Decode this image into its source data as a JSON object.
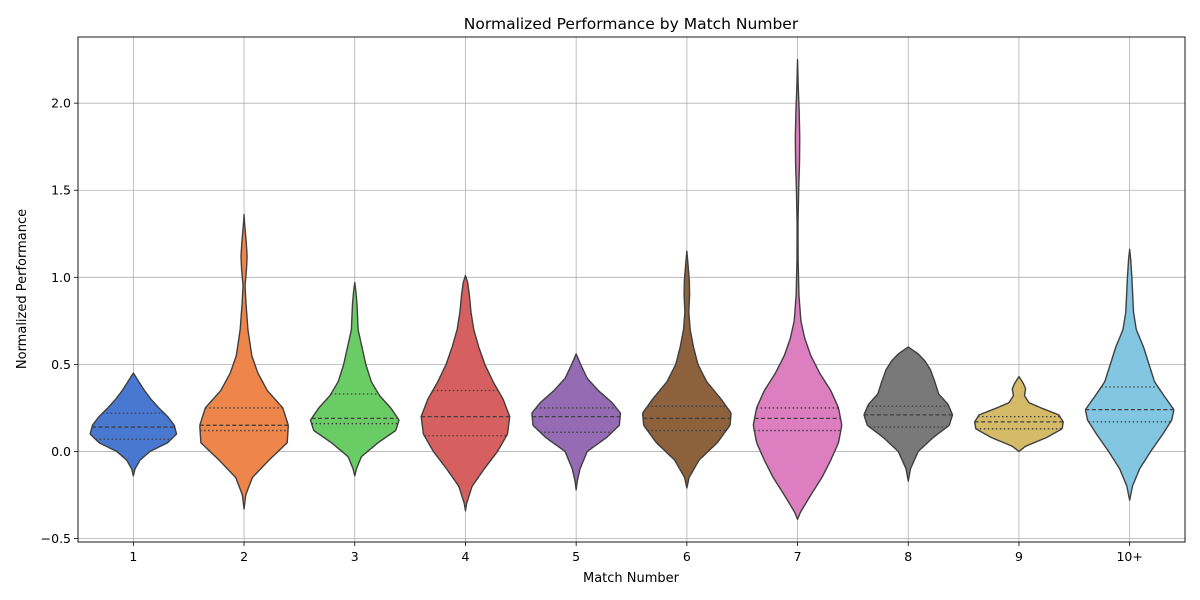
{
  "chart_data": {
    "type": "violin",
    "title": "Normalized Performance by Match Number",
    "xlabel": "Match Number",
    "ylabel": "Normalized Performance",
    "ylim": [
      -0.52,
      2.38
    ],
    "yticks": [
      -0.5,
      0.0,
      0.5,
      1.0,
      1.5,
      2.0
    ],
    "ytick_labels": [
      "−0.5",
      "0.0",
      "0.5",
      "1.0",
      "1.5",
      "2.0"
    ],
    "grid": true,
    "categories": [
      "1",
      "2",
      "3",
      "4",
      "5",
      "6",
      "7",
      "8",
      "9",
      "10+"
    ],
    "colors": [
      "#4878d0",
      "#ee854a",
      "#6acc64",
      "#d65f5f",
      "#956cb4",
      "#8c613c",
      "#dc7ec0",
      "#797979",
      "#d5bb67",
      "#82c6e2"
    ],
    "violins": [
      {
        "category": "1",
        "q1": 0.07,
        "median": 0.14,
        "q3": 0.22,
        "profile": [
          [
            -0.14,
            0.0
          ],
          [
            -0.1,
            0.03
          ],
          [
            -0.05,
            0.12
          ],
          [
            0.0,
            0.3
          ],
          [
            0.05,
            0.62
          ],
          [
            0.1,
            0.78
          ],
          [
            0.15,
            0.74
          ],
          [
            0.2,
            0.62
          ],
          [
            0.25,
            0.46
          ],
          [
            0.3,
            0.32
          ],
          [
            0.35,
            0.2
          ],
          [
            0.4,
            0.1
          ],
          [
            0.45,
            0.0
          ]
        ]
      },
      {
        "category": "2",
        "q1": 0.12,
        "median": 0.15,
        "q3": 0.25,
        "profile": [
          [
            -0.33,
            0.0
          ],
          [
            -0.25,
            0.03
          ],
          [
            -0.15,
            0.15
          ],
          [
            -0.05,
            0.45
          ],
          [
            0.05,
            0.78
          ],
          [
            0.15,
            0.8
          ],
          [
            0.25,
            0.7
          ],
          [
            0.35,
            0.42
          ],
          [
            0.45,
            0.25
          ],
          [
            0.55,
            0.14
          ],
          [
            0.7,
            0.07
          ],
          [
            0.85,
            0.035
          ],
          [
            0.95,
            0.018
          ],
          [
            1.05,
            0.045
          ],
          [
            1.12,
            0.055
          ],
          [
            1.2,
            0.04
          ],
          [
            1.3,
            0.012
          ],
          [
            1.36,
            0.0
          ]
        ]
      },
      {
        "category": "3",
        "q1": 0.16,
        "median": 0.19,
        "q3": 0.33,
        "profile": [
          [
            -0.14,
            0.0
          ],
          [
            -0.1,
            0.03
          ],
          [
            -0.03,
            0.12
          ],
          [
            0.05,
            0.42
          ],
          [
            0.12,
            0.74
          ],
          [
            0.18,
            0.8
          ],
          [
            0.25,
            0.65
          ],
          [
            0.32,
            0.45
          ],
          [
            0.4,
            0.3
          ],
          [
            0.5,
            0.2
          ],
          [
            0.6,
            0.13
          ],
          [
            0.7,
            0.06
          ],
          [
            0.78,
            0.05
          ],
          [
            0.85,
            0.04
          ],
          [
            0.92,
            0.02
          ],
          [
            0.97,
            0.0
          ]
        ]
      },
      {
        "category": "4",
        "q1": 0.09,
        "median": 0.2,
        "q3": 0.35,
        "profile": [
          [
            -0.34,
            0.0
          ],
          [
            -0.3,
            0.02
          ],
          [
            -0.2,
            0.12
          ],
          [
            -0.1,
            0.34
          ],
          [
            0.0,
            0.58
          ],
          [
            0.1,
            0.76
          ],
          [
            0.2,
            0.8
          ],
          [
            0.3,
            0.68
          ],
          [
            0.4,
            0.5
          ],
          [
            0.5,
            0.35
          ],
          [
            0.6,
            0.24
          ],
          [
            0.7,
            0.15
          ],
          [
            0.8,
            0.1
          ],
          [
            0.9,
            0.07
          ],
          [
            0.97,
            0.04
          ],
          [
            1.01,
            0.0
          ]
        ]
      },
      {
        "category": "5",
        "q1": 0.11,
        "median": 0.2,
        "q3": 0.25,
        "profile": [
          [
            -0.22,
            0.0
          ],
          [
            -0.17,
            0.02
          ],
          [
            -0.1,
            0.07
          ],
          [
            0.0,
            0.2
          ],
          [
            0.08,
            0.55
          ],
          [
            0.15,
            0.78
          ],
          [
            0.22,
            0.8
          ],
          [
            0.28,
            0.65
          ],
          [
            0.35,
            0.4
          ],
          [
            0.42,
            0.2
          ],
          [
            0.5,
            0.08
          ],
          [
            0.56,
            0.0
          ]
        ]
      },
      {
        "category": "6",
        "q1": 0.12,
        "median": 0.19,
        "q3": 0.26,
        "profile": [
          [
            -0.21,
            0.0
          ],
          [
            -0.15,
            0.04
          ],
          [
            -0.05,
            0.22
          ],
          [
            0.05,
            0.55
          ],
          [
            0.15,
            0.78
          ],
          [
            0.22,
            0.8
          ],
          [
            0.3,
            0.62
          ],
          [
            0.4,
            0.36
          ],
          [
            0.5,
            0.2
          ],
          [
            0.6,
            0.12
          ],
          [
            0.7,
            0.06
          ],
          [
            0.8,
            0.035
          ],
          [
            0.9,
            0.05
          ],
          [
            0.98,
            0.045
          ],
          [
            1.06,
            0.025
          ],
          [
            1.15,
            0.0
          ]
        ]
      },
      {
        "category": "7",
        "q1": 0.12,
        "median": 0.19,
        "q3": 0.25,
        "profile": [
          [
            -0.39,
            0.0
          ],
          [
            -0.35,
            0.05
          ],
          [
            -0.25,
            0.24
          ],
          [
            -0.15,
            0.44
          ],
          [
            -0.05,
            0.6
          ],
          [
            0.05,
            0.74
          ],
          [
            0.15,
            0.8
          ],
          [
            0.25,
            0.74
          ],
          [
            0.35,
            0.6
          ],
          [
            0.45,
            0.4
          ],
          [
            0.55,
            0.24
          ],
          [
            0.65,
            0.13
          ],
          [
            0.75,
            0.06
          ],
          [
            0.9,
            0.025
          ],
          [
            1.1,
            0.01
          ],
          [
            1.3,
            0.008
          ],
          [
            1.5,
            0.02
          ],
          [
            1.65,
            0.035
          ],
          [
            1.8,
            0.04
          ],
          [
            1.95,
            0.03
          ],
          [
            2.1,
            0.012
          ],
          [
            2.25,
            0.0
          ]
        ]
      },
      {
        "category": "8",
        "q1": 0.14,
        "median": 0.21,
        "q3": 0.26,
        "profile": [
          [
            -0.17,
            0.0
          ],
          [
            -0.1,
            0.04
          ],
          [
            0.0,
            0.18
          ],
          [
            0.08,
            0.45
          ],
          [
            0.15,
            0.74
          ],
          [
            0.21,
            0.8
          ],
          [
            0.27,
            0.72
          ],
          [
            0.33,
            0.55
          ],
          [
            0.4,
            0.48
          ],
          [
            0.47,
            0.4
          ],
          [
            0.52,
            0.3
          ],
          [
            0.56,
            0.18
          ],
          [
            0.6,
            0.0
          ]
        ]
      },
      {
        "category": "9",
        "q1": 0.13,
        "median": 0.17,
        "q3": 0.2,
        "profile": [
          [
            0.0,
            0.0
          ],
          [
            0.03,
            0.12
          ],
          [
            0.08,
            0.5
          ],
          [
            0.13,
            0.78
          ],
          [
            0.17,
            0.8
          ],
          [
            0.21,
            0.72
          ],
          [
            0.25,
            0.4
          ],
          [
            0.28,
            0.18
          ],
          [
            0.32,
            0.1
          ],
          [
            0.36,
            0.12
          ],
          [
            0.39,
            0.08
          ],
          [
            0.43,
            0.0
          ]
        ]
      },
      {
        "category": "10+",
        "q1": 0.17,
        "median": 0.24,
        "q3": 0.37,
        "profile": [
          [
            -0.28,
            0.0
          ],
          [
            -0.2,
            0.05
          ],
          [
            -0.1,
            0.18
          ],
          [
            0.0,
            0.38
          ],
          [
            0.1,
            0.6
          ],
          [
            0.18,
            0.76
          ],
          [
            0.24,
            0.8
          ],
          [
            0.32,
            0.62
          ],
          [
            0.4,
            0.45
          ],
          [
            0.5,
            0.35
          ],
          [
            0.6,
            0.25
          ],
          [
            0.7,
            0.12
          ],
          [
            0.8,
            0.07
          ],
          [
            0.9,
            0.055
          ],
          [
            1.0,
            0.04
          ],
          [
            1.1,
            0.02
          ],
          [
            1.16,
            0.0
          ]
        ]
      }
    ]
  }
}
